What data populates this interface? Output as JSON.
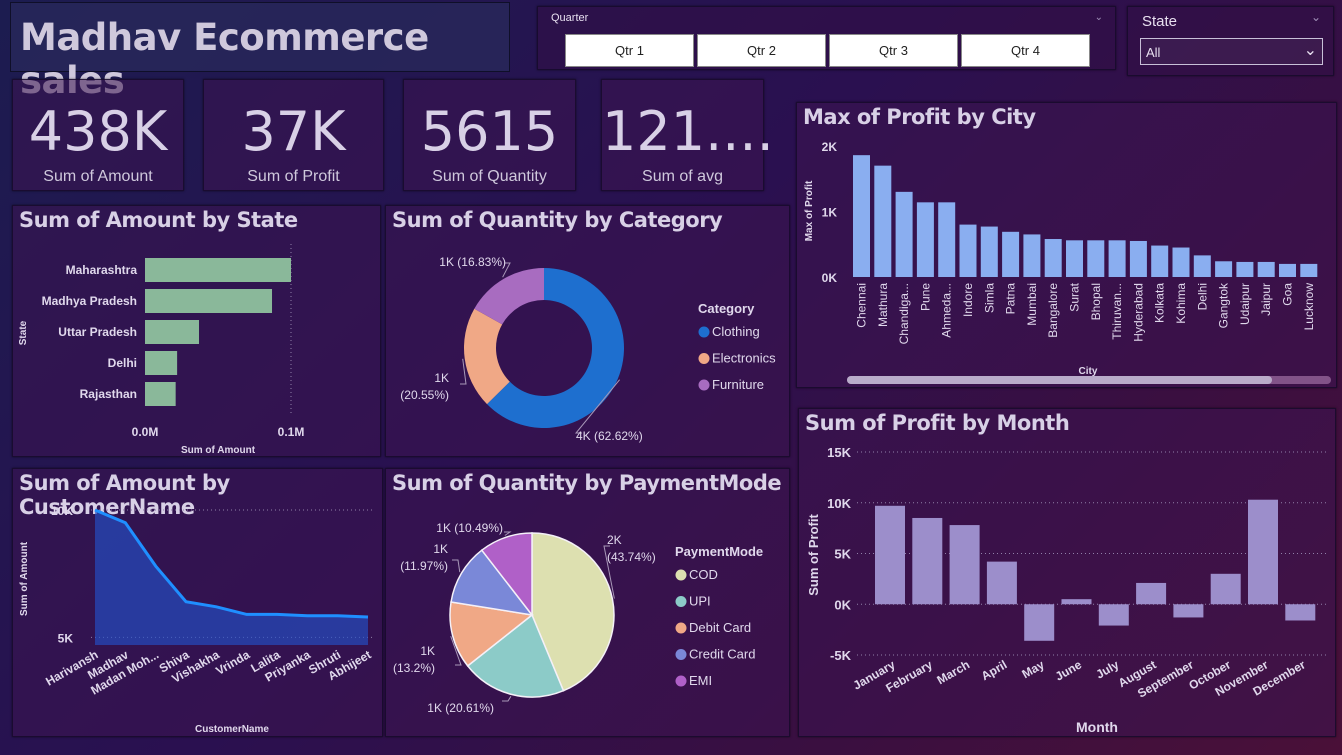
{
  "title": "Madhav Ecommerce sales",
  "quarter_slicer": {
    "label": "Quarter",
    "options": [
      "Qtr 1",
      "Qtr 2",
      "Qtr 3",
      "Qtr 4"
    ]
  },
  "state_slicer": {
    "label": "State",
    "selected": "All"
  },
  "kpis": [
    {
      "value": "438K",
      "label": "Sum of Amount"
    },
    {
      "value": "37K",
      "label": "Sum of Profit"
    },
    {
      "value": "5615",
      "label": "Sum of Quantity"
    },
    {
      "value": "121....",
      "label": "Sum of avg"
    }
  ],
  "panels": {
    "state": "Sum of Amount by State",
    "category": "Sum of Quantity by Category",
    "city": "Max of Profit by City",
    "customer": "Sum of Amount by CustomerName",
    "payment": "Sum of Quantity by PaymentMode",
    "month": "Sum of Profit by Month"
  },
  "chart_data": [
    {
      "id": "state",
      "type": "bar",
      "orientation": "horizontal",
      "categories": [
        "Maharashtra",
        "Madhya Pradesh",
        "Uttar Pradesh",
        "Delhi",
        "Rajasthan"
      ],
      "values": [
        0.1,
        0.087,
        0.037,
        0.022,
        0.021
      ],
      "xlabel": "Sum of Amount",
      "ylabel": "State",
      "xticks": [
        "0.0M",
        "0.1M"
      ],
      "xlim": [
        0,
        0.1
      ],
      "color": "#8ab89a"
    },
    {
      "id": "category",
      "type": "pie",
      "donut": true,
      "legend_title": "Category",
      "labels": [
        "Clothing",
        "Electronics",
        "Furniture"
      ],
      "values": [
        62.62,
        20.55,
        16.83
      ],
      "data_labels": [
        "4K (62.62%)",
        "1K (20.55%)",
        "1K (16.83%)"
      ],
      "colors": [
        "#1e6fcf",
        "#f0a886",
        "#a86cc0"
      ]
    },
    {
      "id": "city",
      "type": "bar",
      "categories": [
        "Chennai",
        "Mathura",
        "Chandiga...",
        "Pune",
        "Ahmeda...",
        "Indore",
        "Simla",
        "Patna",
        "Mumbai",
        "Bangalore",
        "Surat",
        "Bhopal",
        "Thiruvan...",
        "Hyderabad",
        "Kolkata",
        "Kohima",
        "Delhi",
        "Gangtok",
        "Udaipur",
        "Jaipur",
        "Goa",
        "Lucknow"
      ],
      "values": [
        1860,
        1700,
        1300,
        1140,
        1140,
        800,
        770,
        690,
        650,
        580,
        560,
        560,
        560,
        550,
        480,
        450,
        330,
        240,
        230,
        230,
        200,
        200
      ],
      "xlabel": "City",
      "ylabel": "Max of Profit",
      "yticks": [
        "0K",
        "1K",
        "2K"
      ],
      "ylim": [
        0,
        2000
      ],
      "color": "#8aaef0"
    },
    {
      "id": "customer",
      "type": "area",
      "categories": [
        "Harivansh",
        "Madhav",
        "Madan Moh...",
        "Shiva",
        "Vishakha",
        "Vrinda",
        "Lalita",
        "Priyanka",
        "Shruti",
        "Abhijeet"
      ],
      "values": [
        10000,
        9500,
        7800,
        6400,
        6200,
        5900,
        5900,
        5850,
        5850,
        5800
      ],
      "xlabel": "CustomerName",
      "ylabel": "Sum of Amount",
      "yticks": [
        "10K",
        "5K"
      ],
      "ylim": [
        4700,
        10000
      ],
      "color": "#1f8fff"
    },
    {
      "id": "payment",
      "type": "pie",
      "legend_title": "PaymentMode",
      "labels": [
        "COD",
        "UPI",
        "Debit Card",
        "Credit Card",
        "EMI"
      ],
      "values": [
        43.74,
        20.61,
        13.2,
        11.97,
        10.49
      ],
      "data_labels": [
        "2K (43.74%)",
        "1K (20.61%)",
        "1K (13.2%)",
        "1K (11.97%)",
        "1K (10.49%)"
      ],
      "colors": [
        "#dde0b0",
        "#8ccbc8",
        "#f0a886",
        "#7a88d8",
        "#b060c8"
      ]
    },
    {
      "id": "month",
      "type": "bar",
      "categories": [
        "January",
        "February",
        "March",
        "April",
        "May",
        "June",
        "July",
        "August",
        "September",
        "October",
        "November",
        "December"
      ],
      "values": [
        9700,
        8500,
        7800,
        4200,
        -3600,
        500,
        -2100,
        2100,
        -1300,
        3000,
        10300,
        -1600
      ],
      "xlabel": "Month",
      "ylabel": "Sum of Profit",
      "yticks": [
        "15K",
        "10K",
        "5K",
        "0K",
        "-5K"
      ],
      "ylim": [
        -5000,
        15000
      ],
      "color": "#9c8ecb"
    }
  ]
}
